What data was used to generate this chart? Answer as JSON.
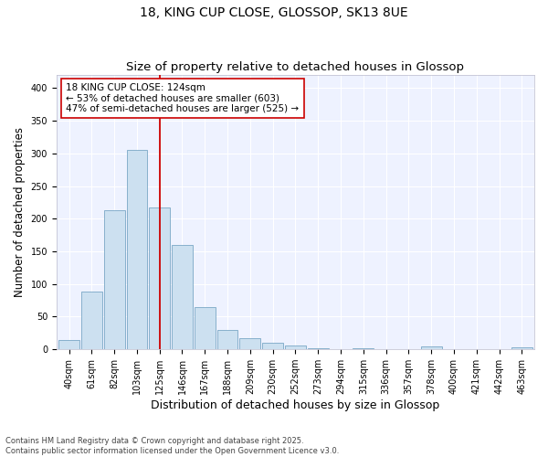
{
  "title_line1": "18, KING CUP CLOSE, GLOSSOP, SK13 8UE",
  "title_line2": "Size of property relative to detached houses in Glossop",
  "xlabel": "Distribution of detached houses by size in Glossop",
  "ylabel": "Number of detached properties",
  "bar_labels": [
    "40sqm",
    "61sqm",
    "82sqm",
    "103sqm",
    "125sqm",
    "146sqm",
    "167sqm",
    "188sqm",
    "209sqm",
    "230sqm",
    "252sqm",
    "273sqm",
    "294sqm",
    "315sqm",
    "336sqm",
    "357sqm",
    "378sqm",
    "400sqm",
    "421sqm",
    "442sqm",
    "463sqm"
  ],
  "bar_values": [
    15,
    88,
    213,
    306,
    217,
    160,
    65,
    30,
    17,
    10,
    6,
    2,
    1,
    2,
    1,
    0,
    4,
    1,
    0,
    0,
    3
  ],
  "bar_color": "#cce0f0",
  "bar_edgecolor": "#6699bb",
  "vline_x": 4.0,
  "vline_color": "#cc0000",
  "annotation_text": "18 KING CUP CLOSE: 124sqm\n← 53% of detached houses are smaller (603)\n47% of semi-detached houses are larger (525) →",
  "annotation_box_color": "#ffffff",
  "annotation_box_edgecolor": "#cc0000",
  "ylim": [
    0,
    420
  ],
  "yticks": [
    0,
    50,
    100,
    150,
    200,
    250,
    300,
    350,
    400
  ],
  "fig_background_color": "#ffffff",
  "plot_background_color": "#eef2ff",
  "grid_color": "#ffffff",
  "footer_text": "Contains HM Land Registry data © Crown copyright and database right 2025.\nContains public sector information licensed under the Open Government Licence v3.0.",
  "title_fontsize": 10,
  "subtitle_fontsize": 9.5,
  "axis_label_fontsize": 8.5,
  "tick_fontsize": 7,
  "annotation_fontsize": 7.5,
  "footer_fontsize": 6
}
